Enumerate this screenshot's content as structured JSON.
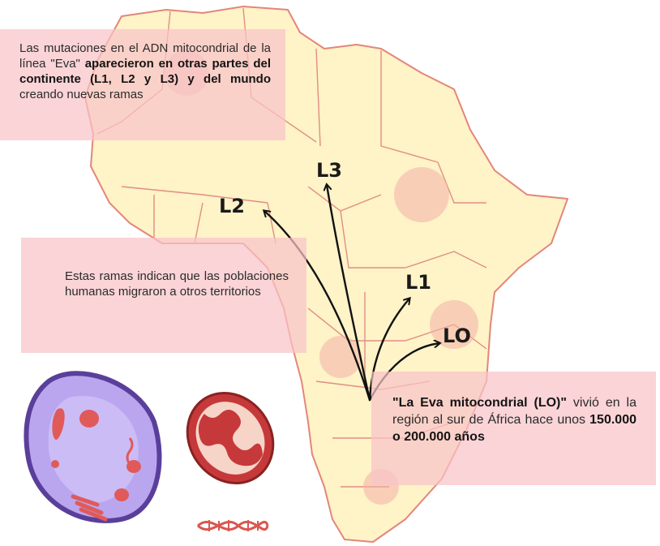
{
  "box_top": {
    "line1": "Las mutaciones en el ADN mitocondrial de la línea \"Eva\"",
    "bold": "aparecieron en otras partes del continente (L1, L2 y L3) y del mundo",
    "tail": "creando nuevas ramas"
  },
  "box_mid": {
    "text": "Estas ramas indican que las poblaciones humanas migraron a otros territorios"
  },
  "box_bot": {
    "bold1": "\"La Eva mitocondrial (LO)\"",
    "mid": "vivió en la región al sur de África hace unos",
    "bold2": "150.000 o 200.000 años"
  },
  "labels": {
    "l3": "L3",
    "l2": "L2",
    "l1": "L1",
    "l0": "LO"
  },
  "colors": {
    "map_fill": "#fff3c8",
    "map_border": "#e3867a",
    "box_fill": "#f8c4c8",
    "cell_membrane": "#5a3f9a",
    "cell_fill": "#b9a6ef",
    "organelle": "#e05a5a",
    "mito_fill": "#c6393a"
  }
}
